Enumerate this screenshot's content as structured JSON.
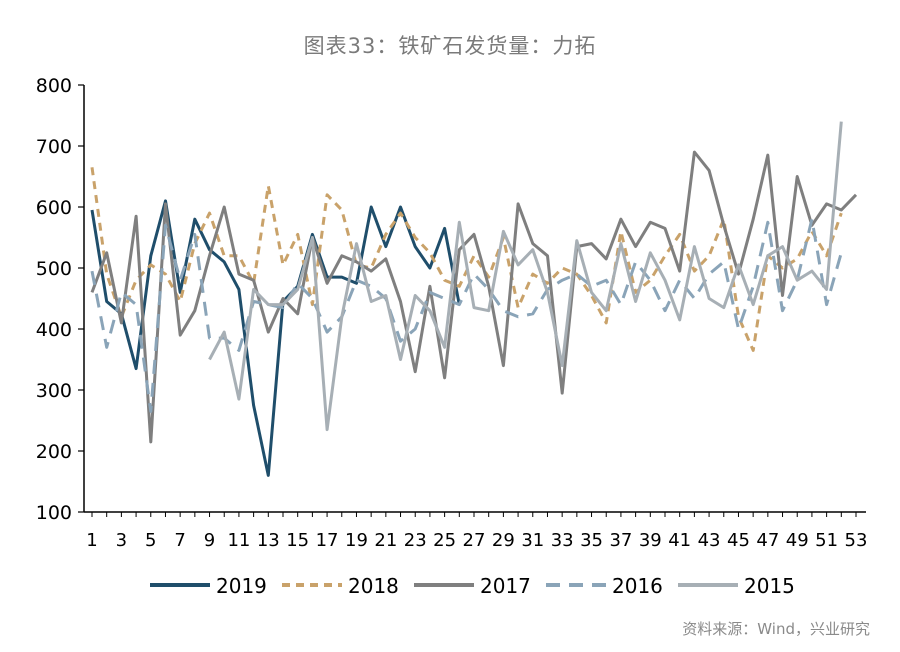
{
  "chart_data": {
    "type": "line",
    "title": "图表33：铁矿石发货量：力拓",
    "source": "资料来源：Wind，兴业研究",
    "xlabel": "",
    "ylabel": "",
    "ylim": [
      100,
      800
    ],
    "yticks": [
      100,
      200,
      300,
      400,
      500,
      600,
      700,
      800
    ],
    "xlim": [
      1,
      53
    ],
    "xticks": [
      1,
      3,
      5,
      7,
      9,
      11,
      13,
      15,
      17,
      19,
      21,
      23,
      25,
      27,
      29,
      31,
      33,
      35,
      37,
      39,
      41,
      43,
      45,
      47,
      49,
      51,
      53
    ],
    "grid": false,
    "legend_position": "bottom",
    "series": [
      {
        "name": "2019",
        "color": "#1f4e6b",
        "style": "solid",
        "values": [
          595,
          445,
          425,
          335,
          520,
          610,
          460,
          580,
          530,
          510,
          465,
          275,
          160,
          445,
          470,
          555,
          485,
          485,
          475,
          600,
          535,
          600,
          535,
          500,
          565,
          440
        ]
      },
      {
        "name": "2018",
        "color": "#c9a26a",
        "style": "dashed",
        "values": [
          665,
          490,
          420,
          480,
          505,
          490,
          445,
          540,
          590,
          520,
          520,
          475,
          635,
          505,
          555,
          440,
          620,
          595,
          505,
          500,
          555,
          590,
          550,
          525,
          480,
          470,
          520,
          485,
          550,
          435,
          490,
          475,
          500,
          490,
          455,
          410,
          560,
          460,
          480,
          520,
          555,
          495,
          520,
          580,
          420,
          365,
          520,
          500,
          515,
          560,
          520,
          590
        ]
      },
      {
        "name": "2017",
        "color": "#7f7f7f",
        "style": "solid",
        "values": [
          460,
          525,
          410,
          585,
          215,
          605,
          390,
          430,
          520,
          600,
          490,
          480,
          395,
          450,
          425,
          550,
          475,
          520,
          510,
          495,
          515,
          445,
          330,
          470,
          320,
          530,
          555,
          470,
          340,
          605,
          540,
          520,
          295,
          535,
          540,
          515,
          580,
          535,
          575,
          565,
          495,
          690,
          660,
          570,
          490,
          580,
          685,
          455,
          650,
          570,
          605,
          595,
          620
        ]
      },
      {
        "name": "2016",
        "color": "#8aa4b8",
        "style": "dashed",
        "values": [
          495,
          370,
          460,
          440,
          265,
          570,
          480,
          555,
          385,
          385,
          365,
          445,
          440,
          435,
          475,
          450,
          395,
          420,
          480,
          470,
          450,
          380,
          400,
          460,
          450,
          440,
          490,
          465,
          430,
          420,
          425,
          465,
          480,
          490,
          470,
          480,
          440,
          510,
          480,
          430,
          480,
          450,
          490,
          510,
          400,
          470,
          575,
          430,
          480,
          580,
          440,
          525
        ]
      },
      {
        "name": "2015",
        "color": "#a7afb5",
        "style": "solid",
        "values": [
          null,
          null,
          null,
          null,
          null,
          null,
          null,
          null,
          350,
          395,
          285,
          465,
          440,
          440,
          465,
          550,
          235,
          420,
          540,
          445,
          455,
          350,
          455,
          430,
          370,
          575,
          435,
          430,
          560,
          505,
          530,
          460,
          340,
          545,
          460,
          430,
          540,
          445,
          525,
          480,
          415,
          535,
          450,
          435,
          505,
          440,
          520,
          535,
          480,
          495,
          465,
          740
        ]
      }
    ]
  }
}
